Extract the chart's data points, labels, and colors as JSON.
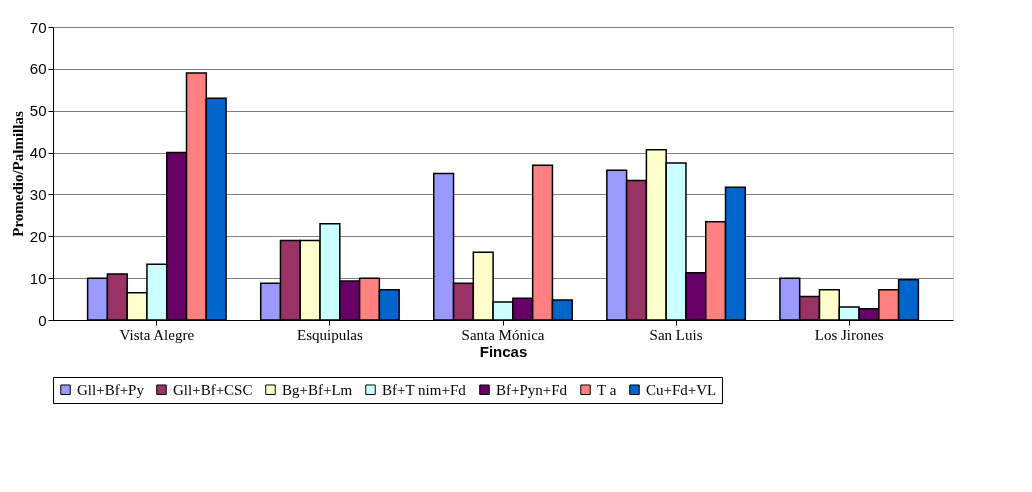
{
  "chart_data": {
    "type": "bar",
    "xlabel": "Fincas",
    "ylabel": "Promedio/Palmillas",
    "categories": [
      "Vista Alegre",
      "Esquipulas",
      "Santa Mónica",
      "San Luis",
      "Los Jirones"
    ],
    "series": [
      {
        "name": "Gll+Bf+Py",
        "color": "#9999ff",
        "values": [
          10,
          8.8,
          35,
          35.8,
          10
        ]
      },
      {
        "name": "Gll+Bf+CSC",
        "color": "#993366",
        "values": [
          11,
          19,
          8.8,
          33.3,
          5.6
        ]
      },
      {
        "name": "Bg+Bf+Lm",
        "color": "#ffffcc",
        "values": [
          6.5,
          19,
          16.2,
          40.7,
          7.2
        ]
      },
      {
        "name": "Bf+T nim+Fd",
        "color": "#ccffff",
        "values": [
          13.3,
          23,
          4.3,
          37.5,
          3.1
        ]
      },
      {
        "name": "Bf+Pyn+Fd",
        "color": "#660066",
        "values": [
          40,
          9.3,
          5.2,
          11.3,
          2.7
        ]
      },
      {
        "name": "T a",
        "color": "#ff8080",
        "values": [
          59,
          10,
          37,
          23.5,
          7.2
        ]
      },
      {
        "name": "Cu+Fd+VL",
        "color": "#0066cc",
        "values": [
          53,
          7.2,
          4.8,
          31.7,
          9.6
        ]
      }
    ],
    "ylim": [
      0,
      70
    ],
    "yticks": [
      0,
      10,
      20,
      30,
      40,
      50,
      60,
      70
    ],
    "grid": "y",
    "legend": "bottom"
  }
}
